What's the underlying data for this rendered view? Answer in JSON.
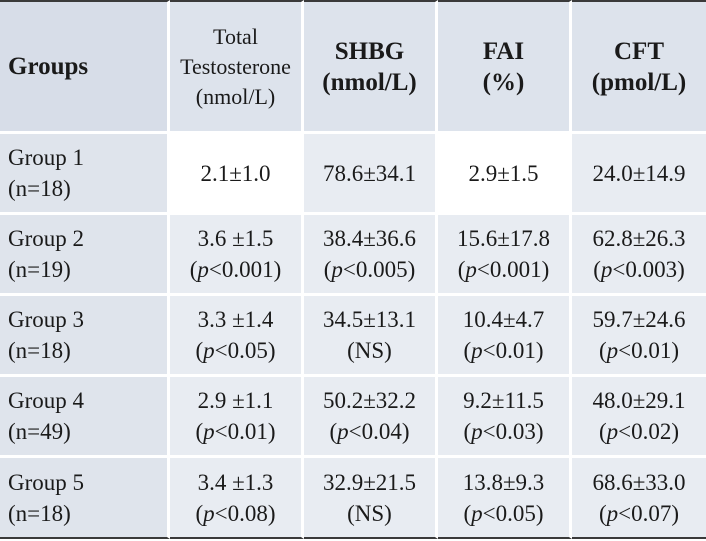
{
  "header": {
    "groups": "Groups",
    "tt_line1": "Total",
    "tt_line2": "Testosterone",
    "tt_line3": "(nmol/L)",
    "shbg_line1": "SHBG",
    "shbg_line2": "(nmol/L)",
    "fai_line1": "FAI",
    "fai_line2": "(%)",
    "cft_line1": "CFT",
    "cft_line2": "(pmol/L)"
  },
  "rows": [
    {
      "group": "Group 1",
      "n": "(n=18)",
      "tt": "2.1±1.0",
      "tt_p": "",
      "shbg": "78.6±34.1",
      "shbg_p": "",
      "fai": "2.9±1.5",
      "fai_p": "",
      "cft": "24.0±14.9",
      "cft_p": ""
    },
    {
      "group": "Group 2",
      "n": "(n=19)",
      "tt": "3.6 ±1.5",
      "tt_p": "(p<0.001)",
      "shbg": "38.4±36.6",
      "shbg_p": "(p<0.005)",
      "fai": "15.6±17.8",
      "fai_p": "(p<0.001)",
      "cft": "62.8±26.3",
      "cft_p": "(p<0.003)"
    },
    {
      "group": "Group 3",
      "n": "(n=18)",
      "tt": "3.3 ±1.4",
      "tt_p": "(p<0.05)",
      "shbg": "34.5±13.1",
      "shbg_p": "(NS)",
      "fai": "10.4±4.7",
      "fai_p": "(p<0.01)",
      "cft": "59.7±24.6",
      "cft_p": "(p<0.01)"
    },
    {
      "group": "Group 4",
      "n": "(n=49)",
      "tt": "2.9 ±1.1",
      "tt_p": "(p<0.01)",
      "shbg": "50.2±32.2",
      "shbg_p": "(p<0.04)",
      "fai": "9.2±11.5",
      "fai_p": "(p<0.03)",
      "cft": "48.0±29.1",
      "cft_p": "(p<0.02)"
    },
    {
      "group": "Group 5",
      "n": "(n=18)",
      "tt": "3.4 ±1.3",
      "tt_p": "(p<0.08)",
      "shbg": "32.9±21.5",
      "shbg_p": "(NS)",
      "fai": "13.8±9.3",
      "fai_p": "(p<0.05)",
      "cft": "68.6±33.0",
      "cft_p": "(p<0.07)"
    }
  ]
}
